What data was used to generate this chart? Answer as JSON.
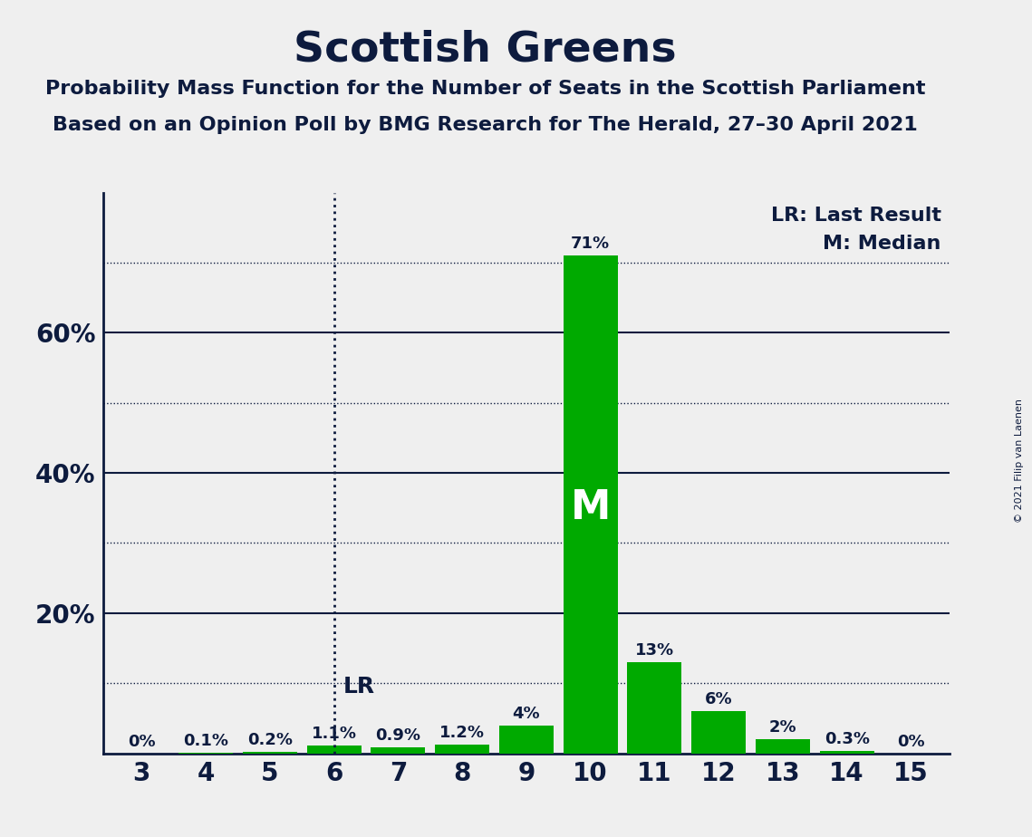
{
  "title": "Scottish Greens",
  "subtitle_line1": "Probability Mass Function for the Number of Seats in the Scottish Parliament",
  "subtitle_line2": "Based on an Opinion Poll by BMG Research for The Herald, 27–30 April 2021",
  "copyright": "© 2021 Filip van Laenen",
  "seats": [
    3,
    4,
    5,
    6,
    7,
    8,
    9,
    10,
    11,
    12,
    13,
    14,
    15
  ],
  "probabilities": [
    0.0,
    0.1,
    0.2,
    1.1,
    0.9,
    1.2,
    4.0,
    71.0,
    13.0,
    6.0,
    2.0,
    0.3,
    0.0
  ],
  "bar_color": "#00aa00",
  "last_result_seat": 6,
  "median_seat": 10,
  "legend_lr": "LR: Last Result",
  "legend_m": "M: Median",
  "background_color": "#efefef",
  "text_color": "#0d1b3e",
  "ylabel_ticks": [
    20,
    40,
    60
  ],
  "dotted_lines": [
    10,
    30,
    50,
    70
  ],
  "solid_lines": [
    20,
    40,
    60
  ],
  "ylim": [
    0,
    80
  ],
  "label_fontsize": 13,
  "tick_fontsize": 20,
  "title_fontsize": 34,
  "subtitle_fontsize": 16,
  "legend_fontsize": 16,
  "lr_label_fontsize": 18,
  "m_label_fontsize": 32
}
